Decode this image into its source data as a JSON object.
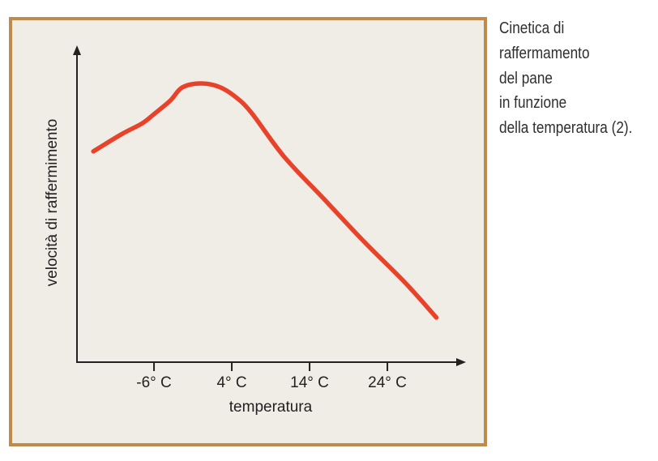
{
  "chart_data": {
    "type": "line",
    "title": "",
    "xlabel": "temperatura",
    "ylabel": "velocità di raffermimento",
    "x_ticks": [
      -6,
      4,
      14,
      24
    ],
    "x_tick_labels": [
      "-6° C",
      "4° C",
      "14° C",
      "24° C"
    ],
    "xlim": [
      -15.9,
      34.3
    ],
    "ylim": [
      0,
      100
    ],
    "y_ticks": [],
    "grid": false,
    "legend": "none",
    "series": [
      {
        "name": "velocità di raffermimento",
        "color": "#e8432a",
        "x": [
          -13.8,
          -10.2,
          -7.5,
          -6.0,
          -3.9,
          -2.4,
          -0.1,
          2.3,
          4.4,
          6.5,
          10.7,
          15.9,
          21.1,
          26.3,
          30.3
        ],
        "y": [
          66.7,
          72.1,
          75.6,
          78.5,
          82.8,
          86.9,
          88.2,
          87.2,
          84.1,
          79.0,
          65.1,
          51.5,
          37.9,
          25.1,
          14.1
        ]
      }
    ]
  },
  "caption": {
    "lines": [
      "Cinetica di",
      "raffermamento",
      "del pane",
      "in funzione",
      "della temperatura (2)."
    ]
  },
  "colors": {
    "frame_border": "#c08a4c",
    "frame_fill": "#f0ede6",
    "axis": "#222222",
    "curve": "#e8432a"
  }
}
